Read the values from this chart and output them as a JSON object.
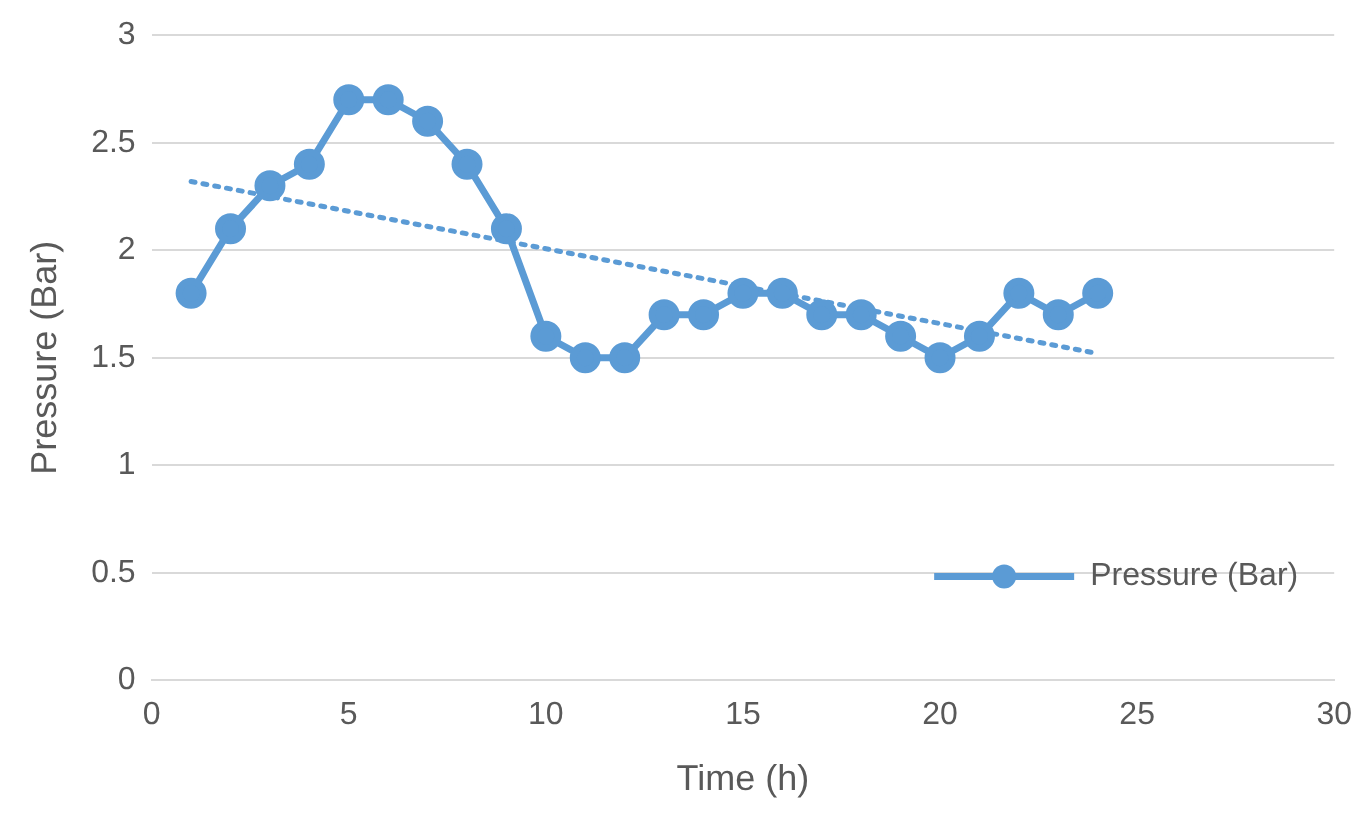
{
  "chart_data": {
    "type": "line",
    "xlabel": "Time (h)",
    "ylabel": "Pressure (Bar)",
    "xlim": [
      0,
      30
    ],
    "xticks": [
      0,
      5,
      10,
      15,
      20,
      25,
      30
    ],
    "ylim": [
      0,
      3
    ],
    "yticks": [
      0,
      0.5,
      1,
      1.5,
      2,
      2.5,
      3
    ],
    "grid": "y",
    "legend": "bottom right",
    "marker": "circle",
    "series": [
      {
        "name": "Pressure (Bar)",
        "color": "#5b9bd5",
        "x": [
          1,
          2,
          3,
          4,
          5,
          6,
          7,
          8,
          9,
          10,
          11,
          12,
          13,
          14,
          15,
          16,
          17,
          18,
          19,
          20,
          21,
          22,
          23,
          24
        ],
        "values": [
          1.8,
          2.1,
          2.3,
          2.4,
          2.7,
          2.7,
          2.6,
          2.4,
          2.1,
          1.6,
          1.5,
          1.5,
          1.7,
          1.7,
          1.8,
          1.8,
          1.7,
          1.7,
          1.6,
          1.5,
          1.6,
          1.8,
          1.7,
          1.8
        ]
      },
      {
        "type": "line",
        "color": "#5b9bd5",
        "marker": "none",
        "line_style": "dotted",
        "x": [
          1,
          24
        ],
        "values": [
          2.32,
          1.52
        ]
      }
    ]
  }
}
